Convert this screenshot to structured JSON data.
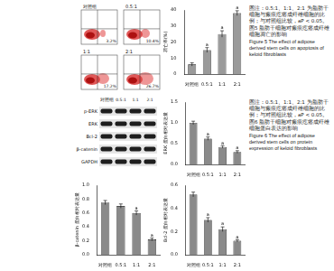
{
  "chart_data": [
    {
      "type": "bar",
      "y_label": "凋亡率(%)",
      "categories": [
        "对照组",
        "0.5:1",
        "1:1",
        "2:1"
      ],
      "values": [
        6,
        15,
        25,
        38
      ],
      "errors": [
        1,
        1.5,
        2,
        1.5
      ],
      "annotations": [
        null,
        "a",
        "a",
        "a"
      ],
      "color": "#9a9a9a",
      "ylim": [
        0,
        40
      ],
      "yticks": [
        0,
        10,
        20,
        30,
        40
      ],
      "grid": false
    },
    {
      "type": "bar",
      "y_label": "ERK 蛋白相对表达量",
      "categories": [
        "对照组",
        "0.5:1",
        "1:1",
        "2:1"
      ],
      "values": [
        1.0,
        0.62,
        0.42,
        0.3
      ],
      "errors": [
        0.04,
        0.04,
        0.03,
        0.03
      ],
      "annotations": [
        null,
        "a",
        "a",
        "a"
      ],
      "color": "#8a8a8a",
      "ylim": [
        0,
        1.5
      ],
      "yticks": [
        {
          "value": 0,
          "label": "0.0"
        },
        0.5,
        {
          "value": 1,
          "label": "1.0"
        },
        1.5
      ],
      "grid": false
    },
    {
      "type": "bar",
      "y_label": "β-catenin 蛋白相对表达量",
      "categories": [
        "对照组",
        "0.5:1",
        "1:1",
        "2:1"
      ],
      "values": [
        0.75,
        0.7,
        0.6,
        0.22
      ],
      "errors": [
        0.03,
        0.03,
        0.03,
        0.02
      ],
      "annotations": [
        null,
        null,
        "a",
        "a"
      ],
      "color": "#8a8a8a",
      "ylim": [
        0,
        1
      ],
      "yticks": [
        {
          "value": 0,
          "label": "0.0"
        },
        0.2,
        0.4,
        0.6,
        0.8,
        {
          "value": 1,
          "label": "1.0"
        }
      ],
      "grid": false
    },
    {
      "type": "bar",
      "y_label": "Bcl-2 蛋白相对表达量",
      "categories": [
        "对照组",
        "0.5:1",
        "1:1",
        "2:1"
      ],
      "values": [
        0.52,
        0.3,
        0.22,
        0.12
      ],
      "errors": [
        0.02,
        0.02,
        0.02,
        0.01
      ],
      "annotations": [
        null,
        "a",
        "a",
        "a"
      ],
      "color": "#8a8a8a",
      "ylim": [
        0,
        0.6
      ],
      "yticks": [
        {
          "value": 0,
          "label": "0.0"
        },
        0.2,
        0.4,
        0.6
      ],
      "grid": false
    }
  ],
  "flow_plots": [
    {
      "label": "对照组",
      "percent": "3.2%"
    },
    {
      "label": "0.5:1",
      "percent": "10.4%"
    },
    {
      "label": "1:1",
      "percent": "17.2%"
    },
    {
      "label": "2:1",
      "percent": "26.7%"
    }
  ],
  "western_blot": {
    "lanes": [
      "对照组",
      "0.5:1",
      "1:1",
      "2:1"
    ],
    "rows": [
      "p-ERK",
      "ERK",
      "Bcl-2",
      "β-catenin",
      "GAPDH"
    ]
  },
  "captions": [
    {
      "note": "图注：0.5:1、1:1、2:1 为脂肪干细胞与瘢痕疙瘩成纤维细胞的比例；与对照组比较，aP < 0.05。",
      "title_cn": "图5 脂肪干细胞对瘢痕疙瘩成纤维细胞凋亡的影响",
      "title_en": "Figure 5 The effect of adipose derived stem cells on apoptosis of keloid fibroblasts"
    },
    {
      "note": "图注：0.5:1、1:1、2:1 为脂肪干细胞与瘢痕疙瘩成纤维细胞的比例；与对照组比较，aP < 0.05。",
      "title_cn": "图6 脂肪干细胞对瘢痕疙瘩成纤维细胞蛋白表达的影响",
      "title_en": "Figure 6 The effect of adipose derived stem cells on protein expression of keloid fibroblasts"
    }
  ]
}
